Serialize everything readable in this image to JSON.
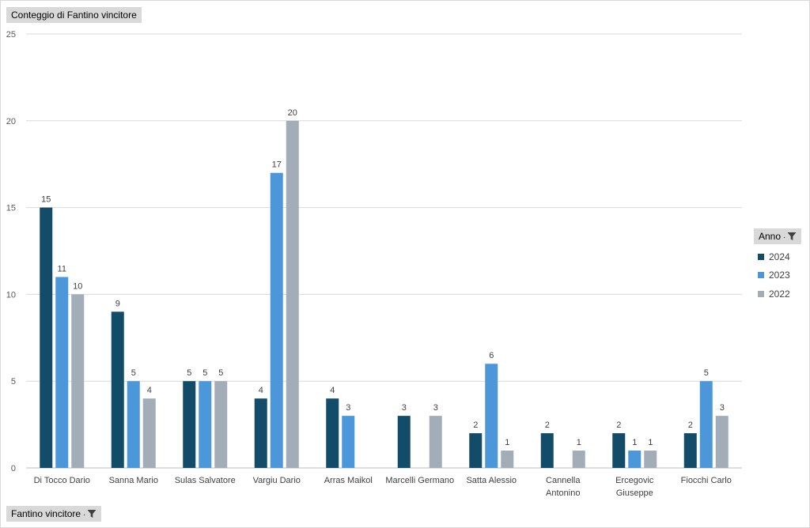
{
  "value_field": {
    "label": "Conteggio di Fantino vincitore"
  },
  "axis_field": {
    "label": "Fantino vincitore",
    "filter_icon": "filter-dropdown-icon"
  },
  "legend_field": {
    "label": "Anno",
    "filter_icon": "filter-icon"
  },
  "chart_data": {
    "type": "bar",
    "title": "",
    "xlabel": "",
    "ylabel": "",
    "ylim": [
      0,
      25
    ],
    "yticks": [
      0,
      5,
      10,
      15,
      20,
      25
    ],
    "grid": true,
    "legend_position": "right",
    "categories": [
      [
        "Di Tocco Dario"
      ],
      [
        "Sanna Mario"
      ],
      [
        "Sulas Salvatore"
      ],
      [
        "Vargiu Dario"
      ],
      [
        "Arras Maikol"
      ],
      [
        "Marcelli Germano"
      ],
      [
        "Satta Alessio"
      ],
      [
        "Cannella",
        "Antonino"
      ],
      [
        "Ercegovic",
        "Giuseppe"
      ],
      [
        "Fiocchi Carlo"
      ]
    ],
    "series": [
      {
        "name": "2024",
        "color": "#124c68",
        "values": [
          15,
          9,
          5,
          4,
          4,
          3,
          2,
          2,
          2,
          2
        ]
      },
      {
        "name": "2023",
        "color": "#4c97d9",
        "values": [
          11,
          5,
          5,
          17,
          3,
          null,
          6,
          null,
          1,
          5
        ]
      },
      {
        "name": "2022",
        "color": "#a2adb8",
        "values": [
          10,
          4,
          5,
          20,
          null,
          3,
          1,
          1,
          1,
          3
        ]
      }
    ]
  }
}
